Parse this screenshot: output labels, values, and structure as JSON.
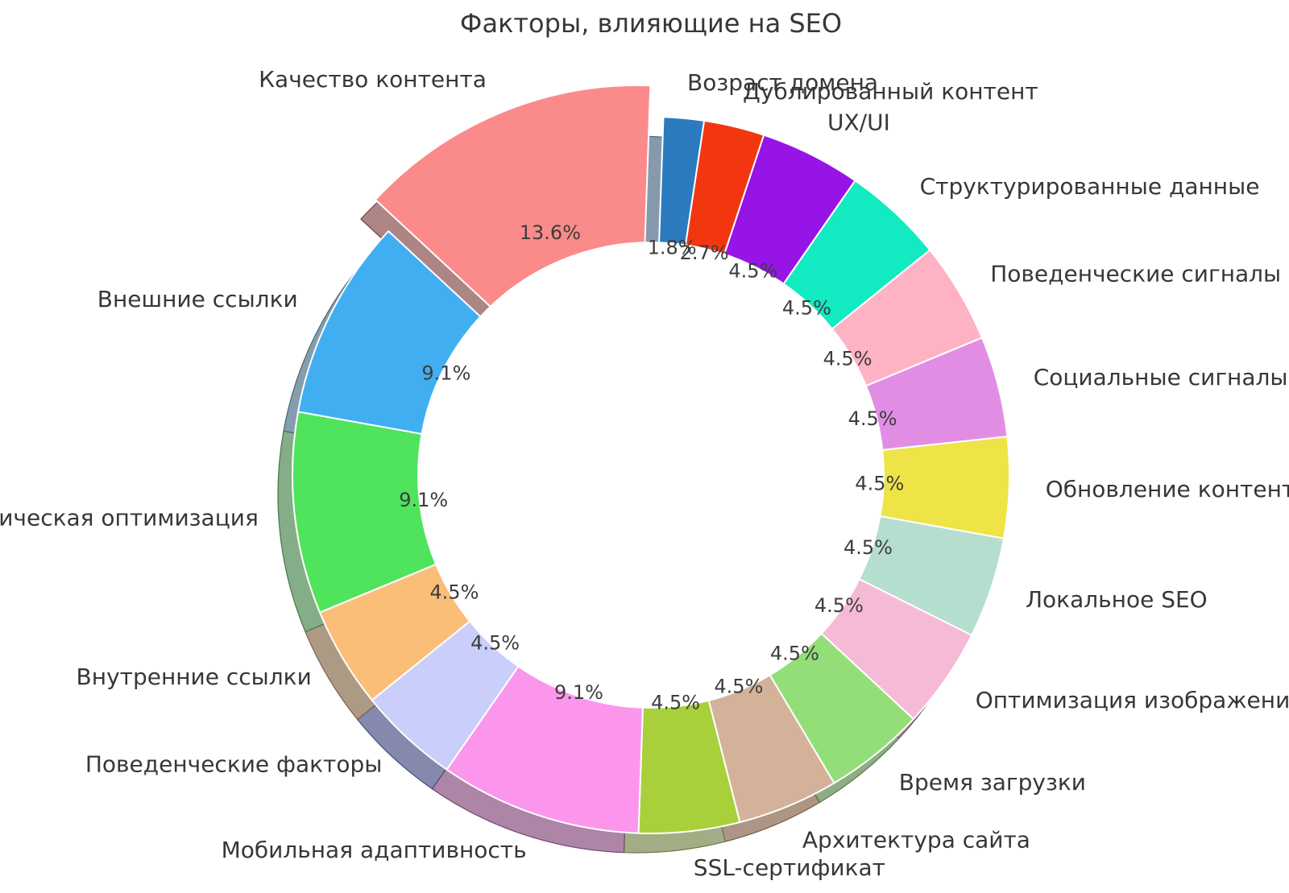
{
  "title": "Факторы, влияющие на SEO",
  "chart_data": {
    "type": "pie",
    "subtype": "donut",
    "title": "Факторы, влияющие на SEO",
    "legend_position": "none",
    "grid": false,
    "start_angle_deg": 88,
    "direction": "clockwise",
    "shadow": true,
    "hole_ratio": 0.65,
    "text_color": "#3a3a3a",
    "slices": [
      {
        "label": "Возраст домена",
        "value": 2,
        "percent": "1.8%",
        "color": "#2B7BBE",
        "explode": 0
      },
      {
        "label": "Дублированный контент",
        "value": 3,
        "percent": "2.7%",
        "color": "#F23710",
        "explode": 0
      },
      {
        "label": "UX/UI",
        "value": 5,
        "percent": "4.5%",
        "color": "#9614E6",
        "explode": 0
      },
      {
        "label": "Структурированные данные",
        "value": 5,
        "percent": "4.5%",
        "color": "#12EBC2",
        "explode": 0
      },
      {
        "label": "Поведенческие сигналы",
        "value": 5,
        "percent": "4.5%",
        "color": "#FFB2C4",
        "explode": 0
      },
      {
        "label": "Социальные сигналы",
        "value": 5,
        "percent": "4.5%",
        "color": "#E28DE4",
        "explode": 0
      },
      {
        "label": "Обновление контента",
        "value": 5,
        "percent": "4.5%",
        "color": "#EEE347",
        "explode": 0
      },
      {
        "label": "Локальное SEO",
        "value": 5,
        "percent": "4.5%",
        "color": "#B5DECE",
        "explode": 0
      },
      {
        "label": "Оптимизация изображений",
        "value": 5,
        "percent": "4.5%",
        "color": "#F5BBD6",
        "explode": 0
      },
      {
        "label": "Время загрузки",
        "value": 5,
        "percent": "4.5%",
        "color": "#94DE79",
        "explode": 0
      },
      {
        "label": "Архитектура сайта",
        "value": 5,
        "percent": "4.5%",
        "color": "#D4B29A",
        "explode": 0
      },
      {
        "label": "SSL-сертификат",
        "value": 5,
        "percent": "4.5%",
        "color": "#A8D03A",
        "explode": 0
      },
      {
        "label": "Мобильная адаптивность",
        "value": 10,
        "percent": "9.1%",
        "color": "#FC96EC",
        "explode": 0
      },
      {
        "label": "Поведенческие факторы",
        "value": 5,
        "percent": "4.5%",
        "color": "#C9CEFA",
        "explode": 0
      },
      {
        "label": "Внутренние ссылки",
        "value": 5,
        "percent": "4.5%",
        "color": "#FBBE79",
        "explode": 0
      },
      {
        "label": "Техническая оптимизация",
        "value": 10,
        "percent": "9.1%",
        "color": "#50E35C",
        "explode": 0
      },
      {
        "label": "Внешние ссылки",
        "value": 10,
        "percent": "9.1%",
        "color": "#42AEF2",
        "explode": 0
      },
      {
        "label": "Качество контента",
        "value": 15,
        "percent": "13.6%",
        "color": "#FB8B8B",
        "explode": 0.095
      }
    ]
  }
}
